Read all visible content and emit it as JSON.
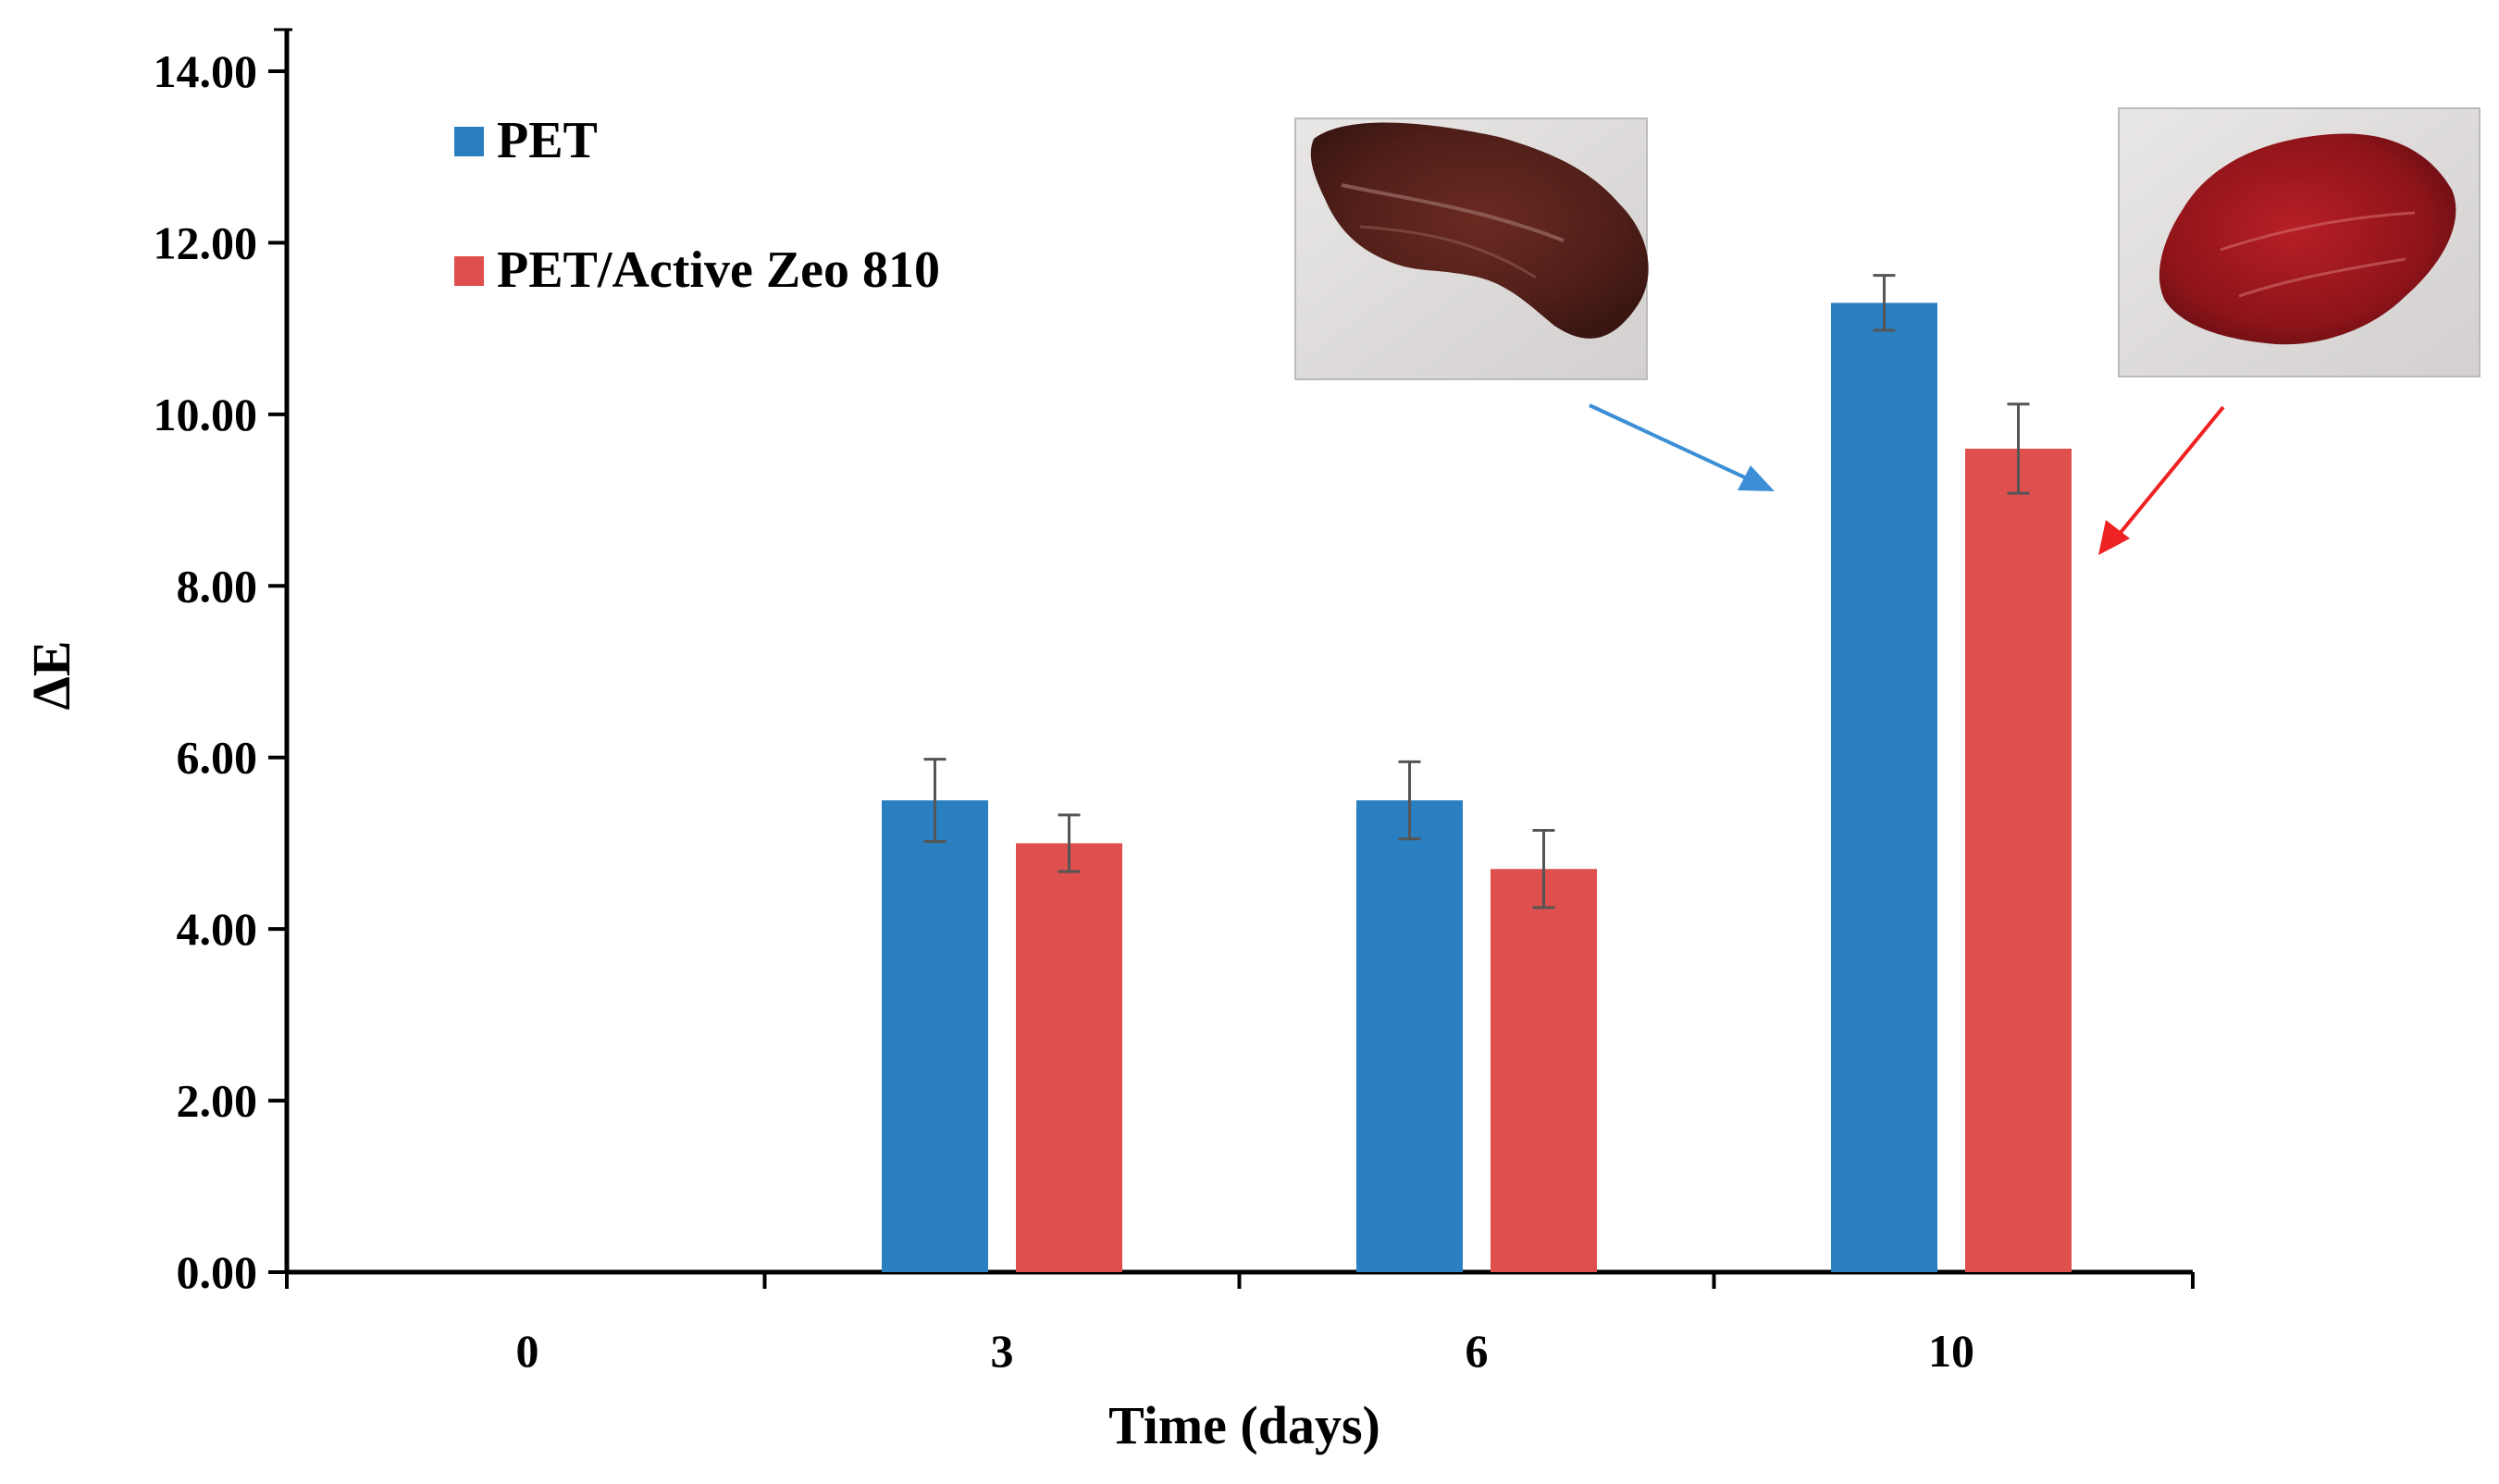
{
  "chart_data": {
    "type": "bar",
    "title": "",
    "xlabel": "Time (days)",
    "ylabel": "ΔE",
    "categories": [
      "0",
      "3",
      "6",
      "10"
    ],
    "ylim": [
      0,
      14
    ],
    "yticks": [
      "0.00",
      "2.00",
      "4.00",
      "6.00",
      "8.00",
      "10.00",
      "12.00",
      "14.00"
    ],
    "series": [
      {
        "name": "PET",
        "color": "#2a7fc1",
        "values": [
          0,
          5.5,
          5.5,
          11.3
        ],
        "errors": [
          0,
          0.48,
          0.45,
          0.32
        ]
      },
      {
        "name": "PET/Active Zeo 810",
        "color": "#de4f4d",
        "values": [
          0,
          5.0,
          4.7,
          9.6
        ],
        "errors": [
          0,
          0.33,
          0.45,
          0.52
        ]
      }
    ],
    "legend_position": "top-left",
    "annotations": [
      {
        "type": "photo",
        "subject": "meat-sample-pet",
        "points_to": "PET bar at day 10",
        "arrow_color": "#3c8fd6"
      },
      {
        "type": "photo",
        "subject": "meat-sample-pet-active-zeo-810",
        "points_to": "PET/Active Zeo 810 bar at day 10",
        "arrow_color": "#ee2222"
      }
    ]
  }
}
